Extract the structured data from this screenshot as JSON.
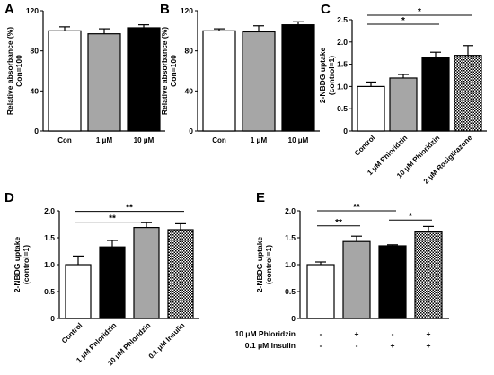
{
  "chart_data": [
    {
      "panel": "A",
      "type": "bar",
      "ylabel": [
        "Relative absorbance (%)",
        "Con=100"
      ],
      "ylim": [
        0,
        120
      ],
      "yticks": [
        0,
        40,
        80,
        120
      ],
      "categories": [
        "Con",
        "1 μM",
        "10 μM"
      ],
      "values": [
        100,
        97,
        103
      ],
      "errors": [
        4,
        5,
        3
      ],
      "fills": [
        "white",
        "gray",
        "black"
      ],
      "x_labels_rotated": false,
      "significance": []
    },
    {
      "panel": "B",
      "type": "bar",
      "ylabel": [
        "Relative absorbance (%)",
        "Con=100"
      ],
      "ylim": [
        0,
        120
      ],
      "yticks": [
        0,
        40,
        80,
        120
      ],
      "categories": [
        "Con",
        "1 μM",
        "10 μM"
      ],
      "values": [
        100,
        99,
        106
      ],
      "errors": [
        2,
        6,
        3
      ],
      "fills": [
        "white",
        "gray",
        "black"
      ],
      "x_labels_rotated": false,
      "significance": []
    },
    {
      "panel": "C",
      "type": "bar",
      "ylabel": [
        "2-NBDG uptake",
        "(control=1)"
      ],
      "ylim": [
        0,
        2.5
      ],
      "yticks": [
        0,
        0.5,
        1.0,
        1.5,
        2.0,
        2.5
      ],
      "categories": [
        "Control",
        "1 μM Phloridzin",
        "10 μM Phloridzin",
        "2 μM Rosiglitazone"
      ],
      "values": [
        1.0,
        1.19,
        1.65,
        1.7
      ],
      "errors": [
        0.1,
        0.08,
        0.12,
        0.22
      ],
      "fills": [
        "white",
        "gray",
        "black",
        "hatch"
      ],
      "x_labels_rotated": true,
      "significance": [
        {
          "from": 0,
          "to": 2,
          "label": "*",
          "y": 2.4
        },
        {
          "from": 0,
          "to": 3,
          "label": "*",
          "y": 2.6
        }
      ]
    },
    {
      "panel": "D",
      "type": "bar",
      "ylabel": [
        "2-NBDG uptake",
        "(control=1)"
      ],
      "ylim": [
        0,
        2.0
      ],
      "yticks": [
        0,
        0.5,
        1.0,
        1.5,
        2.0
      ],
      "categories": [
        "Control",
        "1 μM Phloridzin",
        "10 μM Phloridzin",
        "0.1 μM Insulin"
      ],
      "values": [
        1.0,
        1.33,
        1.69,
        1.65
      ],
      "errors": [
        0.16,
        0.12,
        0.09,
        0.11
      ],
      "fills": [
        "white",
        "black",
        "gray",
        "hatch"
      ],
      "x_labels_rotated": true,
      "significance": [
        {
          "from": 0,
          "to": 2,
          "label": "**",
          "y": 1.79
        },
        {
          "from": 0,
          "to": 3,
          "label": "**",
          "y": 1.99
        }
      ]
    },
    {
      "panel": "E",
      "type": "bar",
      "ylabel": [
        "2-NBDG uptake",
        "(control=1)"
      ],
      "ylim": [
        0,
        2.0
      ],
      "yticks": [
        0,
        0.5,
        1.0,
        1.5,
        2.0
      ],
      "categories": [
        "",
        "",
        "",
        ""
      ],
      "values": [
        1.0,
        1.43,
        1.35,
        1.61
      ],
      "errors": [
        0.05,
        0.1,
        0.02,
        0.1
      ],
      "fills": [
        "white",
        "gray",
        "black",
        "hatch"
      ],
      "x_labels_rotated": false,
      "conditions": [
        {
          "label": "10 μM Phloridzin",
          "marks": [
            "-",
            "+",
            "-",
            "+"
          ]
        },
        {
          "label": "0.1 μM Insulin",
          "marks": [
            "-",
            "-",
            "+",
            "+"
          ]
        }
      ],
      "significance": [
        {
          "from": 0,
          "to": 1,
          "label": "**",
          "y": 1.72
        },
        {
          "from": 0,
          "to": 2,
          "label": "**",
          "y": 2.0
        },
        {
          "from": 2,
          "to": 3,
          "label": "*",
          "y": 1.83
        }
      ]
    }
  ]
}
